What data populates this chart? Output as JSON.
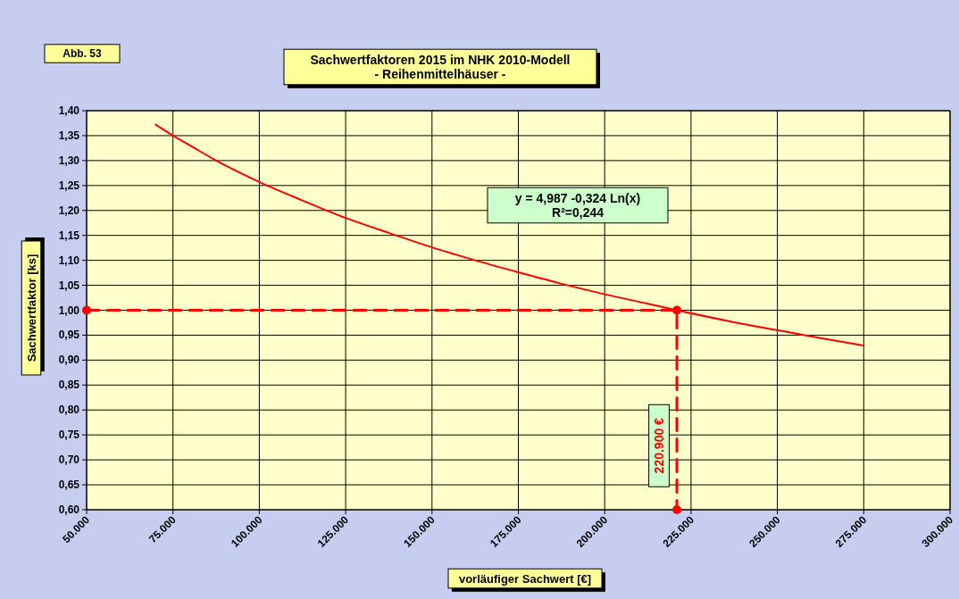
{
  "chart_data": {
    "type": "line",
    "title": "Sachwertfaktoren 2015 im NHK 2010-Modell",
    "subtitle": "- Reihenmittelhäuser -",
    "xlabel": "vorläufiger Sachwert [€]",
    "ylabel": "Sachwertfaktor [ks]",
    "annotations": [
      "Abb. 53",
      "y = 4,987 -0,324 Ln(x)\nR²=0,244",
      "220.900  €"
    ],
    "series": [
      {
        "color": "#ff0000",
        "marker": "none",
        "line_style": "solid",
        "x": [
          70000,
          75000,
          80000,
          87500,
          100000,
          112500,
          125000,
          137500,
          150000,
          162500,
          175000,
          187500,
          200000,
          212500,
          220900,
          237500,
          250000,
          262500,
          275000
        ],
        "values": [
          1.372,
          1.35,
          1.33,
          1.3,
          1.257,
          1.22,
          1.185,
          1.155,
          1.126,
          1.1,
          1.076,
          1.053,
          1.032,
          1.013,
          1.0,
          0.976,
          0.96,
          0.944,
          0.929
        ]
      },
      {
        "color": "#ff0000",
        "marker": "circle",
        "line_style": "dashed",
        "x": [
          50000,
          220900,
          220900
        ],
        "values": [
          1.0,
          1.0,
          0.6
        ]
      }
    ],
    "xlim": [
      50000,
      300000
    ],
    "xticks": [
      {
        "value": 50000,
        "label": "50.000"
      },
      {
        "value": 75000,
        "label": "75.000"
      },
      {
        "value": 100000,
        "label": "100.000"
      },
      {
        "value": 125000,
        "label": "125.000"
      },
      {
        "value": 150000,
        "label": "150.000"
      },
      {
        "value": 175000,
        "label": "175.000"
      },
      {
        "value": 200000,
        "label": "200.000"
      },
      {
        "value": 225000,
        "label": "225.000"
      },
      {
        "value": 250000,
        "label": "250.000"
      },
      {
        "value": 275000,
        "label": "275.000"
      },
      {
        "value": 300000,
        "label": "300.000"
      }
    ],
    "ylim": [
      0.6,
      1.4
    ],
    "yticks": [
      {
        "value": 0.6,
        "label": "0,60"
      },
      {
        "value": 0.65,
        "label": "0,65"
      },
      {
        "value": 0.7,
        "label": "0,70"
      },
      {
        "value": 0.75,
        "label": "0,75"
      },
      {
        "value": 0.8,
        "label": "0,80"
      },
      {
        "value": 0.85,
        "label": "0,85"
      },
      {
        "value": 0.9,
        "label": "0,90"
      },
      {
        "value": 0.95,
        "label": "0,95"
      },
      {
        "value": 1.0,
        "label": "1,00"
      },
      {
        "value": 1.05,
        "label": "1,05"
      },
      {
        "value": 1.1,
        "label": "1,10"
      },
      {
        "value": 1.15,
        "label": "1,15"
      },
      {
        "value": 1.2,
        "label": "1,20"
      },
      {
        "value": 1.25,
        "label": "1,25"
      },
      {
        "value": 1.3,
        "label": "1,30"
      },
      {
        "value": 1.35,
        "label": "1,35"
      },
      {
        "value": 1.4,
        "label": "1,40"
      }
    ],
    "grid": true
  }
}
